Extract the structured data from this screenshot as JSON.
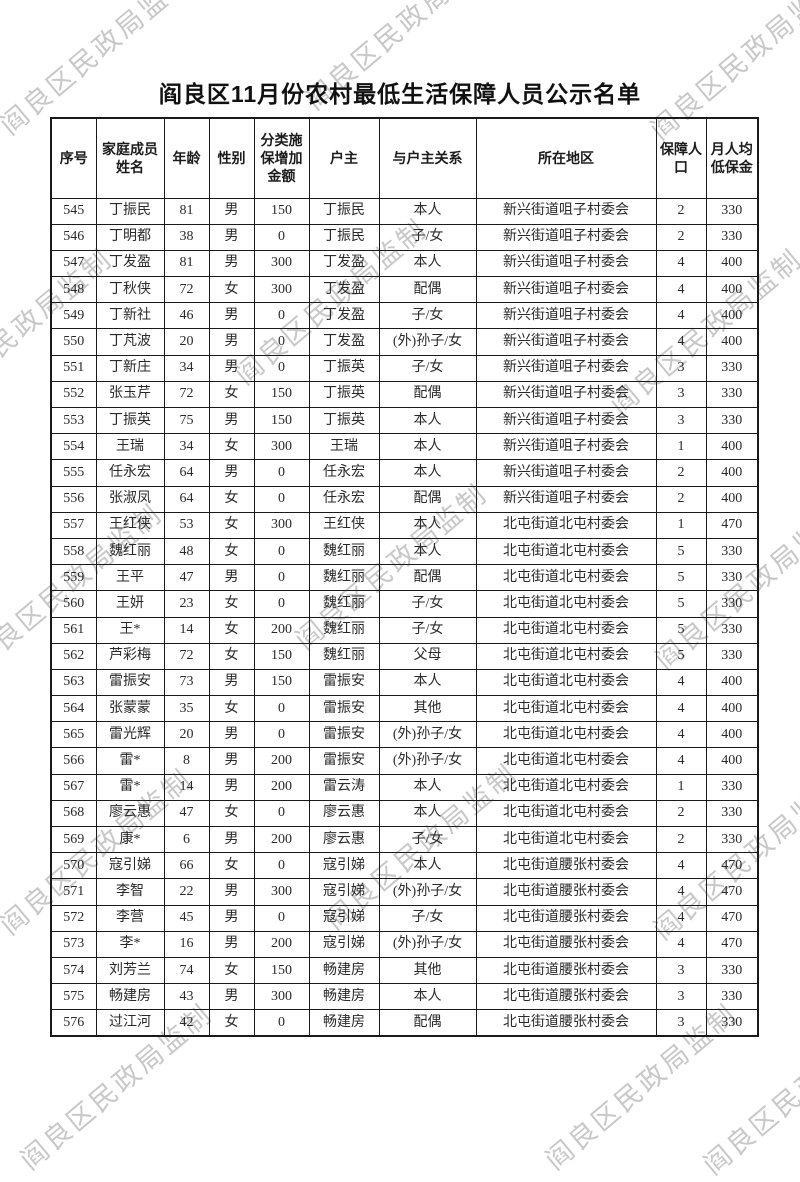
{
  "watermark": {
    "text": "阎良区民政局监制",
    "color": "#c8c8c8"
  },
  "title": "阎良区11月份农村最低生活保障人员公示名单",
  "table": {
    "headers": [
      "序号",
      "家庭成员姓名",
      "年龄",
      "性别",
      "分类施保增加金额",
      "户主",
      "与户主关系",
      "所在地区",
      "保障人口",
      "月人均低保金"
    ],
    "rows": [
      [
        "545",
        "丁振民",
        "81",
        "男",
        "150",
        "丁振民",
        "本人",
        "新兴街道咀子村委会",
        "2",
        "330"
      ],
      [
        "546",
        "丁明都",
        "38",
        "男",
        "0",
        "丁振民",
        "子/女",
        "新兴街道咀子村委会",
        "2",
        "330"
      ],
      [
        "547",
        "丁发盈",
        "81",
        "男",
        "300",
        "丁发盈",
        "本人",
        "新兴街道咀子村委会",
        "4",
        "400"
      ],
      [
        "548",
        "丁秋侠",
        "72",
        "女",
        "300",
        "丁发盈",
        "配偶",
        "新兴街道咀子村委会",
        "4",
        "400"
      ],
      [
        "549",
        "丁新社",
        "46",
        "男",
        "0",
        "丁发盈",
        "子/女",
        "新兴街道咀子村委会",
        "4",
        "400"
      ],
      [
        "550",
        "丁芃波",
        "20",
        "男",
        "0",
        "丁发盈",
        "(外)孙子/女",
        "新兴街道咀子村委会",
        "4",
        "400"
      ],
      [
        "551",
        "丁新庄",
        "34",
        "男",
        "0",
        "丁振英",
        "子/女",
        "新兴街道咀子村委会",
        "3",
        "330"
      ],
      [
        "552",
        "张玉芹",
        "72",
        "女",
        "150",
        "丁振英",
        "配偶",
        "新兴街道咀子村委会",
        "3",
        "330"
      ],
      [
        "553",
        "丁振英",
        "75",
        "男",
        "150",
        "丁振英",
        "本人",
        "新兴街道咀子村委会",
        "3",
        "330"
      ],
      [
        "554",
        "王瑞",
        "34",
        "女",
        "300",
        "王瑞",
        "本人",
        "新兴街道咀子村委会",
        "1",
        "400"
      ],
      [
        "555",
        "任永宏",
        "64",
        "男",
        "0",
        "任永宏",
        "本人",
        "新兴街道咀子村委会",
        "2",
        "400"
      ],
      [
        "556",
        "张淑凤",
        "64",
        "女",
        "0",
        "任永宏",
        "配偶",
        "新兴街道咀子村委会",
        "2",
        "400"
      ],
      [
        "557",
        "王红侠",
        "53",
        "女",
        "300",
        "王红侠",
        "本人",
        "北屯街道北屯村委会",
        "1",
        "470"
      ],
      [
        "558",
        "魏红丽",
        "48",
        "女",
        "0",
        "魏红丽",
        "本人",
        "北屯街道北屯村委会",
        "5",
        "330"
      ],
      [
        "559",
        "王平",
        "47",
        "男",
        "0",
        "魏红丽",
        "配偶",
        "北屯街道北屯村委会",
        "5",
        "330"
      ],
      [
        "560",
        "王妍",
        "23",
        "女",
        "0",
        "魏红丽",
        "子/女",
        "北屯街道北屯村委会",
        "5",
        "330"
      ],
      [
        "561",
        "王*",
        "14",
        "女",
        "200",
        "魏红丽",
        "子/女",
        "北屯街道北屯村委会",
        "5",
        "330"
      ],
      [
        "562",
        "芦彩梅",
        "72",
        "女",
        "150",
        "魏红丽",
        "父母",
        "北屯街道北屯村委会",
        "5",
        "330"
      ],
      [
        "563",
        "雷振安",
        "73",
        "男",
        "150",
        "雷振安",
        "本人",
        "北屯街道北屯村委会",
        "4",
        "400"
      ],
      [
        "564",
        "张蒙蒙",
        "35",
        "女",
        "0",
        "雷振安",
        "其他",
        "北屯街道北屯村委会",
        "4",
        "400"
      ],
      [
        "565",
        "雷光辉",
        "20",
        "男",
        "0",
        "雷振安",
        "(外)孙子/女",
        "北屯街道北屯村委会",
        "4",
        "400"
      ],
      [
        "566",
        "雷*",
        "8",
        "男",
        "200",
        "雷振安",
        "(外)孙子/女",
        "北屯街道北屯村委会",
        "4",
        "400"
      ],
      [
        "567",
        "雷*",
        "14",
        "男",
        "200",
        "雷云涛",
        "本人",
        "北屯街道北屯村委会",
        "1",
        "330"
      ],
      [
        "568",
        "廖云惠",
        "47",
        "女",
        "0",
        "廖云惠",
        "本人",
        "北屯街道北屯村委会",
        "2",
        "330"
      ],
      [
        "569",
        "康*",
        "6",
        "男",
        "200",
        "廖云惠",
        "子/女",
        "北屯街道北屯村委会",
        "2",
        "330"
      ],
      [
        "570",
        "寇引娣",
        "66",
        "女",
        "0",
        "寇引娣",
        "本人",
        "北屯街道腰张村委会",
        "4",
        "470"
      ],
      [
        "571",
        "李智",
        "22",
        "男",
        "300",
        "寇引娣",
        "(外)孙子/女",
        "北屯街道腰张村委会",
        "4",
        "470"
      ],
      [
        "572",
        "李营",
        "45",
        "男",
        "0",
        "寇引娣",
        "子/女",
        "北屯街道腰张村委会",
        "4",
        "470"
      ],
      [
        "573",
        "李*",
        "16",
        "男",
        "200",
        "寇引娣",
        "(外)孙子/女",
        "北屯街道腰张村委会",
        "4",
        "470"
      ],
      [
        "574",
        "刘芳兰",
        "74",
        "女",
        "150",
        "畅建房",
        "其他",
        "北屯街道腰张村委会",
        "3",
        "330"
      ],
      [
        "575",
        "畅建房",
        "43",
        "男",
        "300",
        "畅建房",
        "本人",
        "北屯街道腰张村委会",
        "3",
        "330"
      ],
      [
        "576",
        "过江河",
        "42",
        "女",
        "0",
        "畅建房",
        "配偶",
        "北屯街道腰张村委会",
        "3",
        "330"
      ]
    ]
  }
}
